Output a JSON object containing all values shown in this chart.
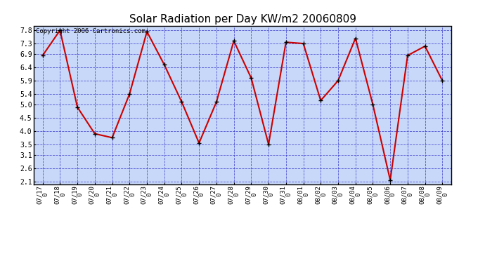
{
  "title": "Solar Radiation per Day KW/m2 20060809",
  "copyright_text": "Copyright 2006 Cartronics.com",
  "dates": [
    "07/17",
    "07/18",
    "07/19",
    "07/20",
    "07/21",
    "07/22",
    "07/23",
    "07/24",
    "07/25",
    "07/26",
    "07/27",
    "07/28",
    "07/29",
    "07/30",
    "07/31",
    "08/01",
    "08/02",
    "08/03",
    "08/04",
    "08/05",
    "08/06",
    "08/07",
    "08/08",
    "08/09"
  ],
  "values": [
    6.85,
    7.8,
    4.9,
    3.9,
    3.75,
    5.4,
    7.75,
    6.5,
    5.1,
    3.55,
    5.1,
    7.4,
    6.0,
    3.5,
    7.35,
    7.3,
    5.15,
    5.9,
    7.5,
    5.0,
    2.15,
    6.85,
    7.2,
    5.9
  ],
  "line_color": "#cc0000",
  "marker_color": "#000000",
  "plot_bg_color": "#c8d8f8",
  "grid_color": "#3333cc",
  "yticks": [
    2.1,
    2.6,
    3.1,
    3.5,
    4.0,
    4.5,
    5.0,
    5.4,
    5.9,
    6.4,
    6.9,
    7.3,
    7.8
  ],
  "ylim": [
    2.0,
    7.95
  ],
  "title_fontsize": 11,
  "copyright_fontsize": 6.5
}
